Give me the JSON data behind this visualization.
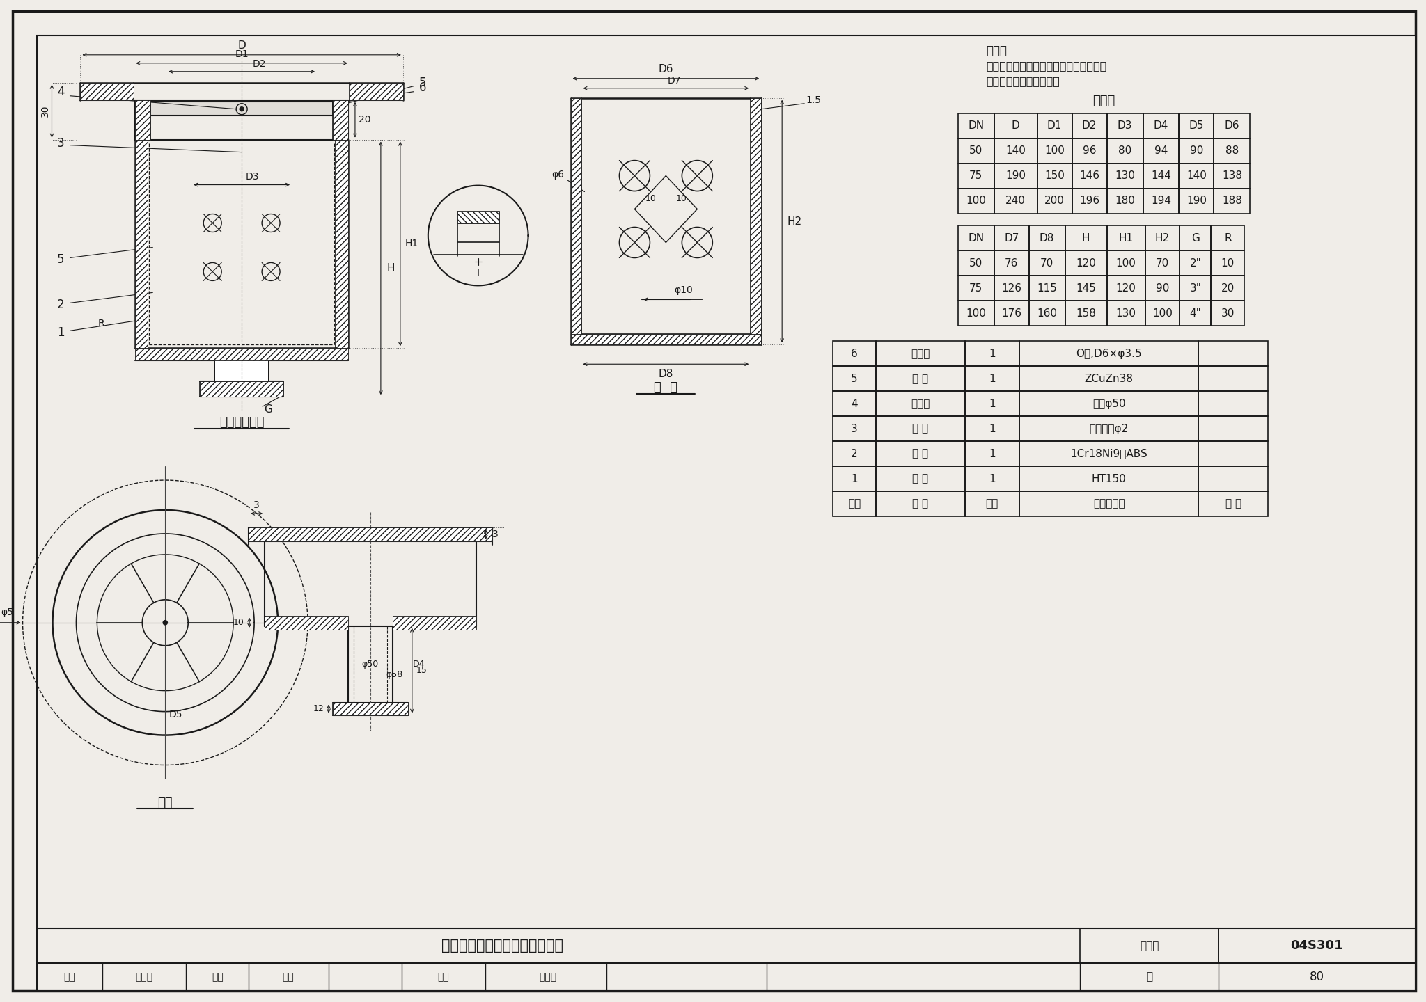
{
  "bg_color": "#f0ede8",
  "line_color": "#1a1a1a",
  "title_block_number": "04S301",
  "page_number": "80",
  "drawing_title": "脏物捕集器（一）构造及配件图",
  "note_title": "说明：",
  "note_line1": "本图系根据上海申利建筑构件制造有限公",
  "note_line2": "司提供的技术资料编制。",
  "dim_table_title": "尺寸表",
  "table1_headers": [
    "DN",
    "D",
    "D1",
    "D2",
    "D3",
    "D4",
    "D5",
    "D6"
  ],
  "table1_rows": [
    [
      "50",
      "140",
      "100",
      "96",
      "80",
      "94",
      "90",
      "88"
    ],
    [
      "75",
      "190",
      "150",
      "146",
      "130",
      "144",
      "140",
      "138"
    ],
    [
      "100",
      "240",
      "200",
      "196",
      "180",
      "194",
      "190",
      "188"
    ]
  ],
  "table2_headers": [
    "DN",
    "D7",
    "D8",
    "H",
    "H1",
    "H2",
    "G",
    "R"
  ],
  "table2_rows": [
    [
      "50",
      "76",
      "70",
      "120",
      "100",
      "70",
      "2\"",
      "10"
    ],
    [
      "75",
      "126",
      "115",
      "145",
      "120",
      "90",
      "3\"",
      "20"
    ],
    [
      "100",
      "176",
      "160",
      "158",
      "130",
      "100",
      "4\"",
      "30"
    ]
  ],
  "parts_headers": [
    "序号",
    "名 称",
    "数量",
    "材料或规格",
    "备 注"
  ],
  "parts_rows": [
    [
      "6",
      "密封圈",
      "1",
      "O型,D6×φ3.5",
      ""
    ],
    [
      "5",
      "盖 板",
      "1",
      "ZCuZn38",
      ""
    ],
    [
      "4",
      "橡皮塞",
      "1",
      "橡胶φ50",
      ""
    ],
    [
      "3",
      "吊 攀",
      "1",
      "不锈钢丝φ2",
      ""
    ],
    [
      "2",
      "网 筐",
      "1",
      "1Cr18Ni9或ABS",
      ""
    ],
    [
      "1",
      "壳 体",
      "1",
      "HT150",
      ""
    ]
  ],
  "label_jujiegou": "捕集器构造图",
  "label_wanglou": "网  筐",
  "label_gaiban": "盖板"
}
